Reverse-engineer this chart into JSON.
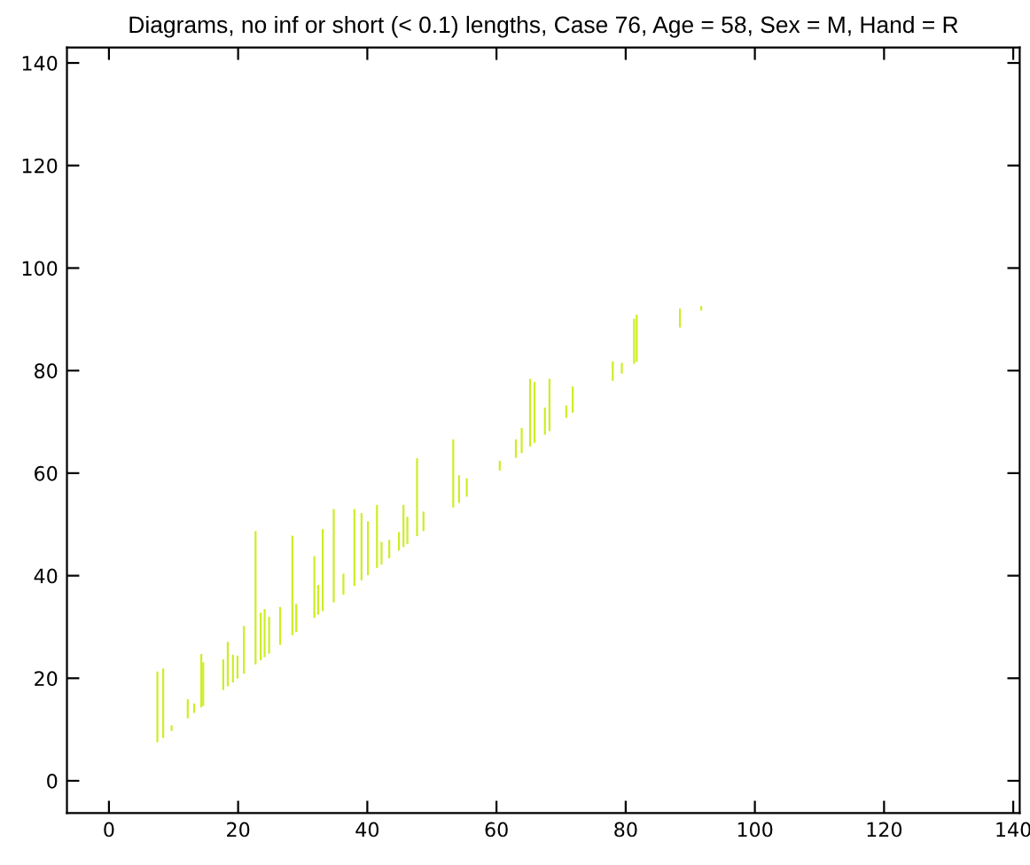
{
  "chart_data": {
    "type": "bar",
    "title": "Diagrams, no inf or short (< 0.1) lengths, Case 76, Age = 58, Sex = M, Hand = R",
    "x": [
      7.5,
      8.4,
      9.7,
      12.2,
      13.2,
      14.3,
      14.6,
      17.7,
      18.4,
      19.2,
      19.9,
      20.9,
      22.7,
      23.5,
      24.1,
      24.8,
      26.5,
      28.4,
      29.0,
      31.8,
      32.4,
      33.1,
      34.8,
      36.3,
      38.0,
      39.1,
      40.1,
      41.5,
      42.2,
      43.4,
      44.9,
      45.6,
      46.2,
      47.7,
      48.7,
      53.3,
      54.2,
      55.4,
      60.5,
      63.0,
      63.9,
      65.2,
      65.9,
      67.5,
      68.2,
      70.8,
      71.8,
      78.0,
      79.4,
      81.3,
      81.7,
      88.4,
      91.7
    ],
    "base": [
      7.5,
      8.4,
      9.7,
      12.2,
      13.2,
      14.3,
      14.6,
      17.7,
      18.4,
      19.2,
      19.9,
      20.9,
      22.7,
      23.5,
      24.1,
      24.8,
      26.5,
      28.4,
      29.0,
      31.8,
      32.4,
      33.1,
      34.8,
      36.3,
      38.0,
      39.1,
      40.1,
      41.5,
      42.2,
      43.4,
      44.9,
      45.6,
      46.2,
      47.7,
      48.7,
      53.3,
      54.2,
      55.4,
      60.5,
      63.0,
      63.9,
      65.2,
      65.9,
      67.5,
      68.2,
      70.8,
      71.8,
      78.0,
      79.4,
      81.3,
      81.7,
      88.4,
      91.7
    ],
    "values": [
      13.8,
      13.5,
      1.1,
      3.7,
      1.9,
      10.4,
      8.5,
      6.0,
      8.7,
      5.4,
      4.5,
      9.3,
      26.0,
      9.3,
      9.4,
      7.2,
      7.4,
      19.4,
      5.5,
      12.0,
      5.8,
      16.0,
      18.2,
      4.1,
      15.0,
      13.1,
      10.5,
      12.3,
      4.4,
      3.6,
      3.6,
      8.2,
      5.3,
      15.2,
      3.8,
      13.3,
      5.4,
      3.6,
      1.9,
      3.6,
      4.9,
      13.2,
      11.9,
      5.3,
      10.2,
      2.4,
      5.1,
      3.8,
      2.1,
      8.8,
      9.2,
      3.7,
      0.9
    ],
    "color": "#ccee22",
    "xlim": [
      -6.5,
      141
    ],
    "ylim": [
      -6.3,
      143
    ],
    "xticks": [
      0,
      20,
      40,
      60,
      80,
      100,
      120,
      140
    ],
    "yticks": [
      0,
      20,
      40,
      60,
      80,
      100,
      120,
      140
    ],
    "grid": false
  }
}
